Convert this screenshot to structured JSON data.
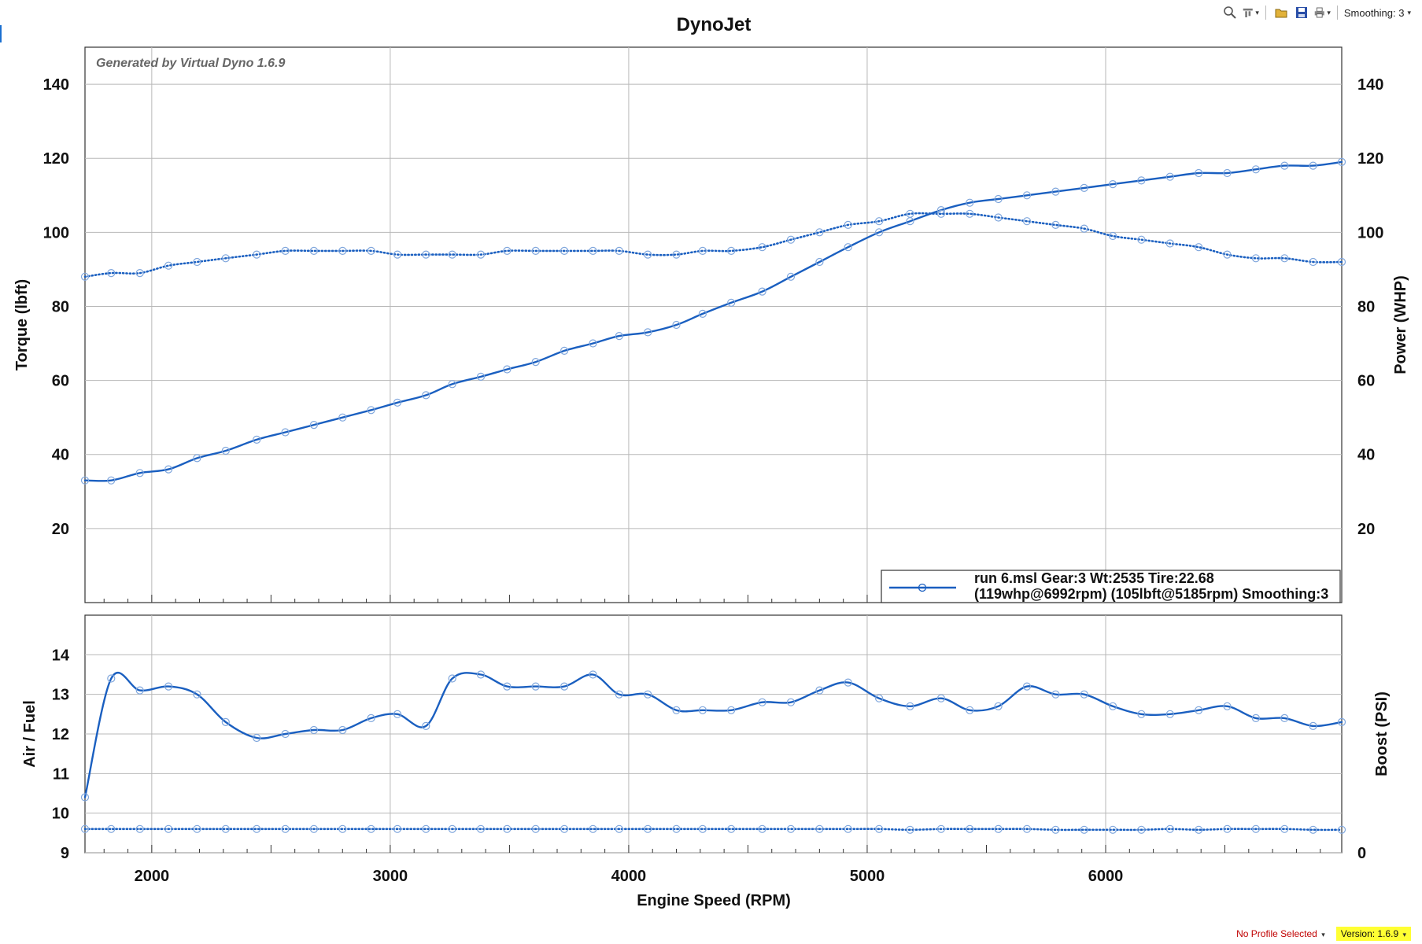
{
  "toolbar": {
    "zoom_icon": "magnifier-icon",
    "filter_icon": "filter-icon",
    "open_icon": "folder-icon",
    "save_icon": "save-icon",
    "print_icon": "printer-icon",
    "smoothing_label": "Smoothing: 3"
  },
  "status": {
    "profile": "No Profile Selected",
    "version": "Version: 1.6.9"
  },
  "chart_data": [
    {
      "type": "line",
      "title": "DynoJet",
      "watermark": "Generated by Virtual Dyno 1.6.9",
      "xlabel": "Engine Speed (RPM)",
      "ylabel": "Torque (lbft)",
      "y2label": "Power (WHP)",
      "xlim": [
        1720,
        6990
      ],
      "ylim": [
        0,
        150
      ],
      "y2lim": [
        0,
        150
      ],
      "xticks": [
        2000,
        3000,
        4000,
        5000,
        6000
      ],
      "yticks": [
        20,
        40,
        60,
        80,
        100,
        120,
        140
      ],
      "y2ticks": [
        20,
        40,
        60,
        80,
        100,
        120,
        140
      ],
      "grid": true,
      "legend": {
        "position": "bottom-right",
        "line1": "run 6.msl Gear:3 Wt:2535 Tire:22.68",
        "line2": "(119whp@6992rpm) (105lbft@5185rpm) Smoothing:3"
      },
      "series": [
        {
          "name": "Power (WHP)",
          "style": "solid",
          "color": "#1a5fc0",
          "x": [
            1720,
            1830,
            1950,
            2070,
            2190,
            2310,
            2440,
            2560,
            2680,
            2800,
            2920,
            3030,
            3150,
            3260,
            3380,
            3490,
            3610,
            3730,
            3850,
            3960,
            4080,
            4200,
            4310,
            4430,
            4560,
            4680,
            4800,
            4920,
            5050,
            5180,
            5310,
            5430,
            5550,
            5670,
            5790,
            5910,
            6030,
            6150,
            6270,
            6390,
            6510,
            6630,
            6750,
            6870,
            6990
          ],
          "values": [
            33,
            33,
            35,
            36,
            39,
            41,
            44,
            46,
            48,
            50,
            52,
            54,
            56,
            59,
            61,
            63,
            65,
            68,
            70,
            72,
            73,
            75,
            78,
            81,
            84,
            88,
            92,
            96,
            100,
            103,
            106,
            108,
            109,
            110,
            111,
            112,
            113,
            114,
            115,
            116,
            116,
            117,
            118,
            118,
            119
          ]
        },
        {
          "name": "Torque (lbft)",
          "style": "dotted",
          "color": "#1a5fc0",
          "x": [
            1720,
            1830,
            1950,
            2070,
            2190,
            2310,
            2440,
            2560,
            2680,
            2800,
            2920,
            3030,
            3150,
            3260,
            3380,
            3490,
            3610,
            3730,
            3850,
            3960,
            4080,
            4200,
            4310,
            4430,
            4560,
            4680,
            4800,
            4920,
            5050,
            5180,
            5310,
            5430,
            5550,
            5670,
            5790,
            5910,
            6030,
            6150,
            6270,
            6390,
            6510,
            6630,
            6750,
            6870,
            6990
          ],
          "values": [
            88,
            89,
            89,
            91,
            92,
            93,
            94,
            95,
            95,
            95,
            95,
            94,
            94,
            94,
            94,
            95,
            95,
            95,
            95,
            95,
            94,
            94,
            95,
            95,
            96,
            98,
            100,
            102,
            103,
            105,
            105,
            105,
            104,
            103,
            102,
            101,
            99,
            98,
            97,
            96,
            94,
            93,
            93,
            92,
            92
          ]
        }
      ]
    },
    {
      "type": "line",
      "xlabel": "Engine Speed (RPM)",
      "ylabel": "Air / Fuel",
      "y2label": "Boost (PSI)",
      "xlim": [
        1720,
        6990
      ],
      "ylim": [
        9,
        15
      ],
      "y2lim": [
        0,
        15
      ],
      "xticks": [
        2000,
        3000,
        4000,
        5000,
        6000
      ],
      "yticks": [
        9,
        10,
        11,
        12,
        13,
        14
      ],
      "y2ticks": [
        0
      ],
      "grid": true,
      "series": [
        {
          "name": "Air / Fuel",
          "style": "solid",
          "color": "#1a5fc0",
          "x": [
            1720,
            1830,
            1950,
            2070,
            2190,
            2310,
            2440,
            2560,
            2680,
            2800,
            2920,
            3030,
            3150,
            3260,
            3380,
            3490,
            3610,
            3730,
            3850,
            3960,
            4080,
            4200,
            4310,
            4430,
            4560,
            4680,
            4800,
            4920,
            5050,
            5180,
            5310,
            5430,
            5550,
            5670,
            5790,
            5910,
            6030,
            6150,
            6270,
            6390,
            6510,
            6630,
            6750,
            6870,
            6990
          ],
          "values": [
            10.4,
            13.4,
            13.1,
            13.2,
            13.0,
            12.3,
            11.9,
            12.0,
            12.1,
            12.1,
            12.4,
            12.5,
            12.2,
            13.4,
            13.5,
            13.2,
            13.2,
            13.2,
            13.5,
            13.0,
            13.0,
            12.6,
            12.6,
            12.6,
            12.8,
            12.8,
            13.1,
            13.3,
            12.9,
            12.7,
            12.9,
            12.6,
            12.7,
            13.2,
            13.0,
            13.0,
            12.7,
            12.5,
            12.5,
            12.6,
            12.7,
            12.4,
            12.4,
            12.2,
            12.3
          ]
        },
        {
          "name": "Boost (PSI)",
          "style": "dotted",
          "color": "#1a5fc0",
          "x": [
            1720,
            1830,
            1950,
            2070,
            2190,
            2310,
            2440,
            2560,
            2680,
            2800,
            2920,
            3030,
            3150,
            3260,
            3380,
            3490,
            3610,
            3730,
            3850,
            3960,
            4080,
            4200,
            4310,
            4430,
            4560,
            4680,
            4800,
            4920,
            5050,
            5180,
            5310,
            5430,
            5550,
            5670,
            5790,
            5910,
            6030,
            6150,
            6270,
            6390,
            6510,
            6630,
            6750,
            6870,
            6990
          ],
          "values": [
            9.6,
            9.6,
            9.6,
            9.6,
            9.6,
            9.6,
            9.6,
            9.6,
            9.6,
            9.6,
            9.6,
            9.6,
            9.6,
            9.6,
            9.6,
            9.6,
            9.6,
            9.6,
            9.6,
            9.6,
            9.6,
            9.6,
            9.6,
            9.6,
            9.6,
            9.6,
            9.6,
            9.6,
            9.6,
            9.58,
            9.6,
            9.6,
            9.6,
            9.6,
            9.58,
            9.58,
            9.58,
            9.58,
            9.6,
            9.58,
            9.6,
            9.6,
            9.6,
            9.58,
            9.58
          ]
        }
      ]
    }
  ]
}
